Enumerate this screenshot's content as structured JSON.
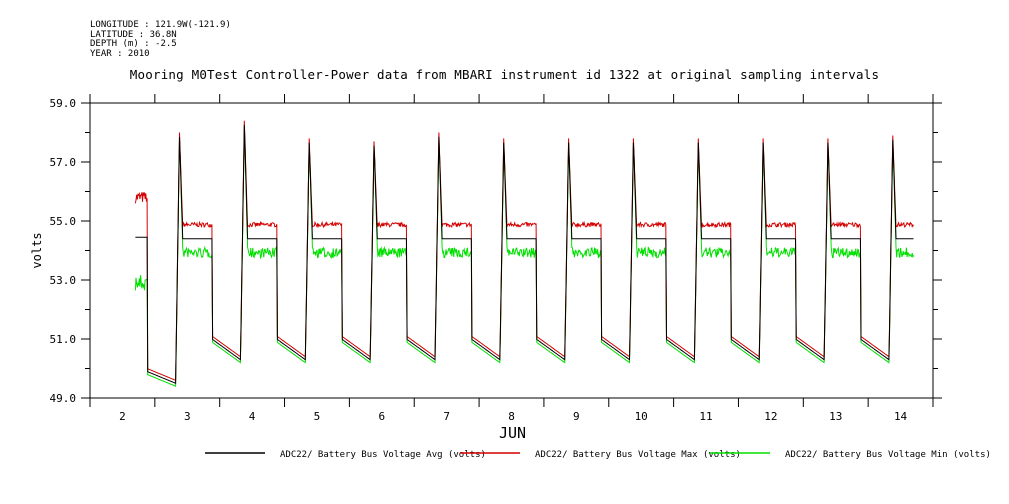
{
  "metadata": {
    "longitude": "LONGITUDE : 121.9W(-121.9)",
    "latitude": "LATITUDE : 36.8N",
    "depth": "DEPTH (m) : -2.5",
    "year": "YEAR : 2010"
  },
  "chart_data": {
    "type": "line",
    "title": "Mooring M0Test Controller-Power data from MBARI instrument id 1322 at original sampling intervals",
    "xlabel": "JUN",
    "ylabel": "volts",
    "xlim": [
      1.5,
      14.5
    ],
    "ylim": [
      49.0,
      59.0
    ],
    "x_ticks": [
      "2",
      "3",
      "4",
      "5",
      "6",
      "7",
      "8",
      "9",
      "10",
      "11",
      "12",
      "13",
      "14"
    ],
    "y_ticks": [
      "49.0",
      "51.0",
      "53.0",
      "55.0",
      "57.0",
      "59.0"
    ],
    "y_tick_values": [
      49.0,
      51.0,
      53.0,
      55.0,
      57.0,
      59.0
    ],
    "cycle_model": {
      "note": "approximate daily charge cycle, x in day-of-month units",
      "start_day": 2.2,
      "end_day": 14.2,
      "series_start_values": {
        "avg": 54.45,
        "max": 55.6,
        "min": 53.2
      },
      "drop_offset_days": 0.38,
      "night_start_value": 51.0,
      "night_end_value": 50.3,
      "rise_offset_days": 0.82,
      "peak_offset_days": 0.88,
      "peaks": [
        58.0,
        57.9,
        57.8,
        57.7,
        58.0,
        57.8,
        57.8,
        57.8,
        57.8,
        57.8,
        57.8,
        57.9
      ],
      "plateau_values": {
        "avg": 54.4,
        "max": 54.8,
        "min": 54.1
      }
    },
    "day_overrides": {
      "2": {
        "night_start": 49.9,
        "night_end": 49.5
      },
      "3": {
        "peak": 58.4
      }
    },
    "series": [
      {
        "name": "ADC22/ Battery Bus Voltage Avg (volts)",
        "key": "avg",
        "color": "#000000"
      },
      {
        "name": "ADC22/ Battery Bus Voltage Max (volts)",
        "key": "max",
        "color": "#d40000"
      },
      {
        "name": "ADC22/ Battery Bus Voltage Min (volts)",
        "key": "min",
        "color": "#00e000"
      }
    ],
    "grid": false,
    "legend_position": "bottom"
  }
}
